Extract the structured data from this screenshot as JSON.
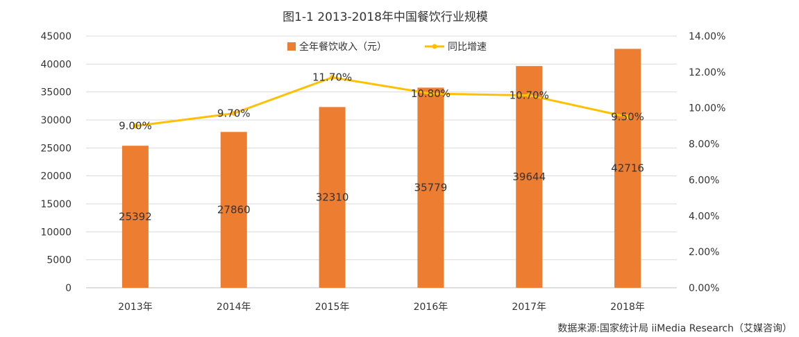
{
  "chart_data": {
    "type": "bar",
    "title": "图1-1  2013-2018年中国餐饮行业规模",
    "categories": [
      "2013年",
      "2014年",
      "2015年",
      "2016年",
      "2017年",
      "2018年"
    ],
    "series": [
      {
        "name": "全年餐饮收入（元）",
        "type": "bar",
        "axis": "left",
        "color": "#ED7D31",
        "values": [
          25392,
          27860,
          32310,
          35779,
          39644,
          42716
        ],
        "labels": [
          "25392",
          "27860",
          "32310",
          "35779",
          "39644",
          "42716"
        ]
      },
      {
        "name": "同比增速",
        "type": "line",
        "axis": "right",
        "color": "#FFC000",
        "values": [
          9.0,
          9.7,
          11.7,
          10.8,
          10.7,
          9.5
        ],
        "labels": [
          "9.00%",
          "9.70%",
          "11.70%",
          "10.80%",
          "10.70%",
          "9.50%"
        ]
      }
    ],
    "y_left": {
      "min": 0,
      "max": 45000,
      "ticks": [
        "0",
        "5000",
        "10000",
        "15000",
        "20000",
        "25000",
        "30000",
        "35000",
        "40000",
        "45000"
      ]
    },
    "y_right": {
      "min": 0,
      "max": 14,
      "ticks": [
        "0.00%",
        "2.00%",
        "4.00%",
        "6.00%",
        "8.00%",
        "10.00%",
        "12.00%",
        "14.00%"
      ]
    },
    "grid": true,
    "legend": "top-center",
    "source": "数据来源:国家统计局  iiMedia Research（艾媒咨询）"
  }
}
